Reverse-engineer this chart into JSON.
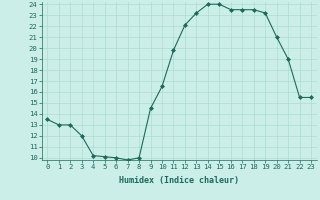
{
  "x": [
    0,
    1,
    2,
    3,
    4,
    5,
    6,
    7,
    8,
    9,
    10,
    11,
    12,
    13,
    14,
    15,
    16,
    17,
    18,
    19,
    20,
    21,
    22,
    23
  ],
  "y": [
    13.5,
    13.0,
    13.0,
    12.0,
    10.2,
    10.1,
    10.0,
    9.8,
    10.0,
    14.5,
    16.5,
    19.8,
    22.1,
    23.2,
    24.0,
    24.0,
    23.5,
    23.5,
    23.5,
    23.2,
    21.0,
    19.0,
    15.5,
    15.5
  ],
  "xlabel": "Humidex (Indice chaleur)",
  "ylim": [
    10,
    24
  ],
  "xlim": [
    -0.5,
    23.5
  ],
  "yticks": [
    10,
    11,
    12,
    13,
    14,
    15,
    16,
    17,
    18,
    19,
    20,
    21,
    22,
    23,
    24
  ],
  "xticks": [
    0,
    1,
    2,
    3,
    4,
    5,
    6,
    7,
    8,
    9,
    10,
    11,
    12,
    13,
    14,
    15,
    16,
    17,
    18,
    19,
    20,
    21,
    22,
    23
  ],
  "line_color": "#1a6b5a",
  "bg_color": "#cceee8",
  "grid_color": "#aaddcc",
  "tick_color": "#1a6b5a",
  "label_fontsize": 5.2,
  "xlabel_fontsize": 6.0
}
